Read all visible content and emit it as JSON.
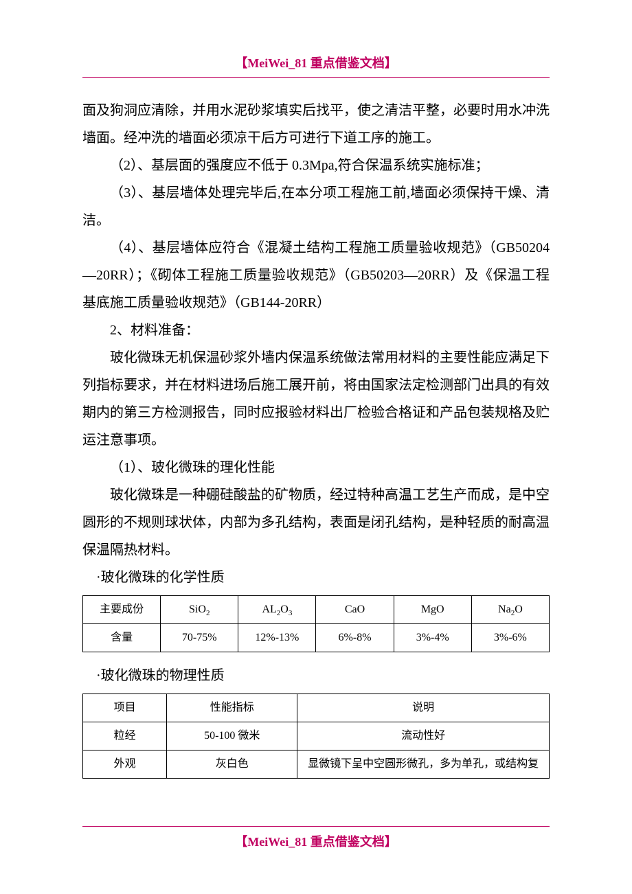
{
  "header": "【MeiWei_81 重点借鉴文档】",
  "footer": "【MeiWei_81 重点借鉴文档】",
  "p1": "面及狗洞应清除，并用水泥砂浆填实后找平，使之清洁平整，必要时用水冲洗墙面。经冲洗的墙面必须凉干后方可进行下道工序的施工。",
  "p2": "（2）、基层面的强度应不低于 0.3Mpa,符合保温系统实施标准；",
  "p3": "（3）、基层墙体处理完毕后,在本分项工程施工前,墙面必须保持干燥、清洁。",
  "p4": "（4）、基层墙体应符合《混凝土结构工程施工质量验收规范》（GB50204—20RR）；《砌体工程施工质量验收规范》（GB50203—20RR）及《保温工程基底施工质量验收规范》（GB144-20RR）",
  "p5": "2、材料准备：",
  "p6": "玻化微珠无机保温砂浆外墙内保温系统做法常用材料的主要性能应满足下列指标要求，并在材料进场后施工展开前，将由国家法定检测部门出具的有效期内的第三方检测报告，同时应报验材料出厂检验合格证和产品包装规格及贮运注意事项。",
  "p7": "（1）、玻化微珠的理化性能",
  "p8": "玻化微珠是一种硼硅酸盐的矿物质，经过特种高温工艺生产而成，是中空圆形的不规则球状体，内部为多孔结构，表面是闭孔结构，是种轻质的耐高温保温隔热材料。",
  "b1": "·玻化微珠的化学性质",
  "b2": "·玻化微珠的物理性质",
  "table1": {
    "type": "table",
    "columns": [
      "主要成份",
      "SiO2",
      "AL2O3",
      "CaO",
      "MgO",
      "Na2O"
    ],
    "column_labels_raw": [
      "主要成份",
      "SiO₂",
      "AL₂O₃",
      "CaO",
      "MgO",
      "Na₂O"
    ],
    "rows": [
      [
        "含量",
        "70-75%",
        "12%-13%",
        "6%-8%",
        "3%-4%",
        "3%-6%"
      ]
    ],
    "border_color": "#000000",
    "font_size": 16,
    "text_color": "#000000",
    "background_color": "#ffffff"
  },
  "table2": {
    "type": "table",
    "columns": [
      "项目",
      "性能指标",
      "说明"
    ],
    "rows": [
      [
        "粒经",
        "50-100 微米",
        "流动性好"
      ],
      [
        "外观",
        "灰白色",
        "显微镜下呈中空圆形微孔，多为单孔，或结构复"
      ]
    ],
    "column_widths_pct": [
      18,
      28,
      54
    ],
    "border_color": "#000000",
    "font_size": 16,
    "text_color": "#000000",
    "background_color": "#ffffff"
  },
  "colors": {
    "header_color": "#c00060",
    "text_color": "#000000",
    "background": "#ffffff",
    "border": "#000000"
  },
  "typography": {
    "body_font_size": 20,
    "body_line_height": 2.0,
    "header_font_size": 18,
    "table_font_size": 16,
    "font_family": "SimSun"
  }
}
